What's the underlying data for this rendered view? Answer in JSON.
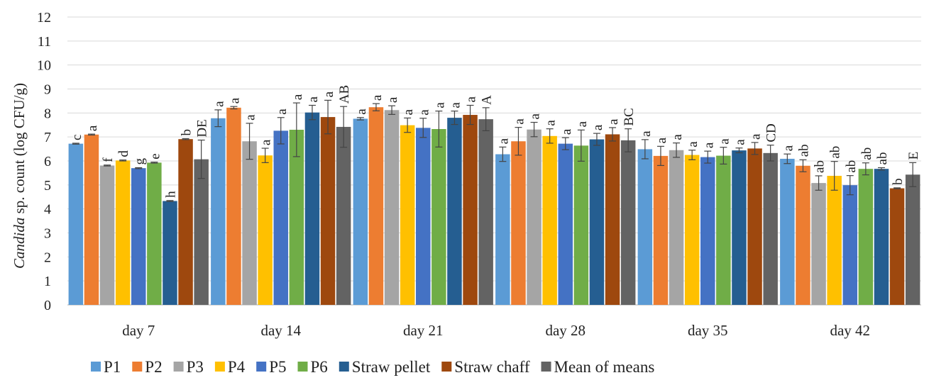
{
  "chart_data": {
    "type": "bar",
    "ylabel_italic": "Candida",
    "ylabel_rest": " sp. count (log CFU/g)",
    "ylim": [
      0,
      12
    ],
    "yticks": [
      "0",
      "1",
      "2",
      "3",
      "4",
      "5",
      "6",
      "7",
      "8",
      "9",
      "10",
      "11",
      "12"
    ],
    "categories": [
      "day 7",
      "day 14",
      "day 21",
      "day 28",
      "day 35",
      "day 42"
    ],
    "grid": true,
    "legend_position": "bottom",
    "series": [
      {
        "name": "P1",
        "color": "#5b9bd5",
        "values": [
          6.72,
          7.78,
          7.76,
          6.28,
          6.49,
          6.09
        ],
        "errors": [
          0.02,
          0.35,
          0.05,
          0.3,
          0.4,
          0.2
        ],
        "letters": [
          "c",
          "a",
          "a",
          "a",
          "a",
          "a"
        ]
      },
      {
        "name": "P2",
        "color": "#ed7d31",
        "values": [
          7.1,
          8.22,
          8.24,
          6.82,
          6.21,
          5.8
        ],
        "errors": [
          0.02,
          0.05,
          0.15,
          0.58,
          0.4,
          0.25
        ],
        "letters": [
          "a",
          "a",
          "a",
          "a",
          "a",
          "ab"
        ]
      },
      {
        "name": "P3",
        "color": "#a5a5a5",
        "values": [
          5.81,
          6.82,
          8.12,
          7.31,
          6.45,
          5.08
        ],
        "errors": [
          0.02,
          0.75,
          0.18,
          0.3,
          0.3,
          0.3
        ],
        "letters": [
          "f",
          "a",
          "a",
          "a",
          "a",
          "ab"
        ]
      },
      {
        "name": "P4",
        "color": "#ffc000",
        "values": [
          6.02,
          6.23,
          7.49,
          7.04,
          6.25,
          5.38
        ],
        "errors": [
          0.02,
          0.3,
          0.3,
          0.3,
          0.2,
          0.6
        ],
        "letters": [
          "d",
          "a",
          "a",
          "a",
          "a",
          "ab"
        ]
      },
      {
        "name": "P5",
        "color": "#4472c4",
        "values": [
          5.7,
          7.26,
          7.38,
          6.72,
          6.16,
          4.99
        ],
        "errors": [
          0.02,
          0.55,
          0.4,
          0.25,
          0.25,
          0.4
        ],
        "letters": [
          "g",
          "a",
          "a",
          "a",
          "a",
          "ab"
        ]
      },
      {
        "name": "P6",
        "color": "#70ad47",
        "values": [
          5.93,
          7.3,
          7.33,
          6.64,
          6.22,
          5.67
        ],
        "errors": [
          0.02,
          1.12,
          0.75,
          0.65,
          0.35,
          0.25
        ],
        "letters": [
          "e",
          "a",
          "a",
          "a",
          "a",
          "ab"
        ]
      },
      {
        "name": "Straw pellet",
        "color": "#255e91",
        "values": [
          4.33,
          8.02,
          7.8,
          6.9,
          6.44,
          5.67
        ],
        "errors": [
          0.02,
          0.3,
          0.28,
          0.25,
          0.1,
          0.05
        ],
        "letters": [
          "h",
          "a",
          "a",
          "a",
          "a",
          "ab"
        ]
      },
      {
        "name": "Straw chaff",
        "color": "#9e480e",
        "values": [
          6.91,
          7.83,
          7.92,
          7.11,
          6.52,
          4.86
        ],
        "errors": [
          0.02,
          0.7,
          0.4,
          0.28,
          0.25,
          0.02
        ],
        "letters": [
          "b",
          "a",
          "a",
          "a",
          "a",
          "b"
        ]
      },
      {
        "name": "Mean of means",
        "color": "#636363",
        "values": [
          6.07,
          7.42,
          7.74,
          6.86,
          6.33,
          5.43
        ],
        "errors": [
          0.8,
          0.85,
          0.48,
          0.48,
          0.33,
          0.5
        ],
        "letters": [
          "DE",
          "AB",
          "A",
          "BC",
          "CD",
          "E"
        ]
      }
    ]
  }
}
